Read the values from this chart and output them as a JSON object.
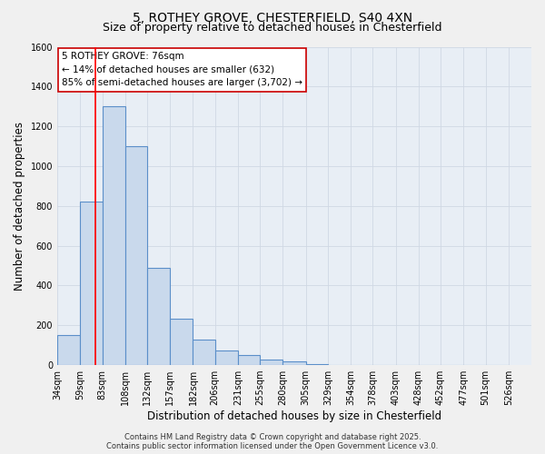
{
  "title_line1": "5, ROTHEY GROVE, CHESTERFIELD, S40 4XN",
  "title_line2": "Size of property relative to detached houses in Chesterfield",
  "xlabel": "Distribution of detached houses by size in Chesterfield",
  "ylabel": "Number of detached properties",
  "bar_left_edges": [
    34,
    59,
    83,
    108,
    132,
    157,
    182,
    206,
    231,
    255,
    280,
    305,
    329,
    354,
    378,
    403,
    428,
    452,
    477,
    501
  ],
  "bar_widths": [
    25,
    24,
    25,
    24,
    25,
    25,
    24,
    25,
    24,
    25,
    25,
    24,
    25,
    24,
    25,
    25,
    24,
    25,
    24,
    25
  ],
  "bar_heights": [
    150,
    820,
    1300,
    1100,
    490,
    235,
    130,
    75,
    50,
    30,
    20,
    5,
    0,
    0,
    0,
    0,
    0,
    0,
    0,
    0
  ],
  "bar_facecolor": "#c9d9ec",
  "bar_edgecolor": "#5b8fc9",
  "background_color": "#e8eef5",
  "grid_color": "#d0d8e4",
  "red_line_x": 76,
  "ylim": [
    0,
    1600
  ],
  "yticks": [
    0,
    200,
    400,
    600,
    800,
    1000,
    1200,
    1400,
    1600
  ],
  "xtick_labels": [
    "34sqm",
    "59sqm",
    "83sqm",
    "108sqm",
    "132sqm",
    "157sqm",
    "182sqm",
    "206sqm",
    "231sqm",
    "255sqm",
    "280sqm",
    "305sqm",
    "329sqm",
    "354sqm",
    "378sqm",
    "403sqm",
    "428sqm",
    "452sqm",
    "477sqm",
    "501sqm",
    "526sqm"
  ],
  "xtick_positions": [
    34,
    59,
    83,
    108,
    132,
    157,
    182,
    206,
    231,
    255,
    280,
    305,
    329,
    354,
    378,
    403,
    428,
    452,
    477,
    501,
    526
  ],
  "annotation_title": "5 ROTHEY GROVE: 76sqm",
  "annotation_line2": "← 14% of detached houses are smaller (632)",
  "annotation_line3": "85% of semi-detached houses are larger (3,702) →",
  "annotation_box_facecolor": "#ffffff",
  "annotation_box_edgecolor": "#cc0000",
  "footer_line1": "Contains HM Land Registry data © Crown copyright and database right 2025.",
  "footer_line2": "Contains public sector information licensed under the Open Government Licence v3.0.",
  "fig_facecolor": "#f0f0f0",
  "title_fontsize": 10,
  "subtitle_fontsize": 9,
  "axis_label_fontsize": 8.5,
  "tick_fontsize": 7,
  "annotation_fontsize": 7.5,
  "footer_fontsize": 6
}
